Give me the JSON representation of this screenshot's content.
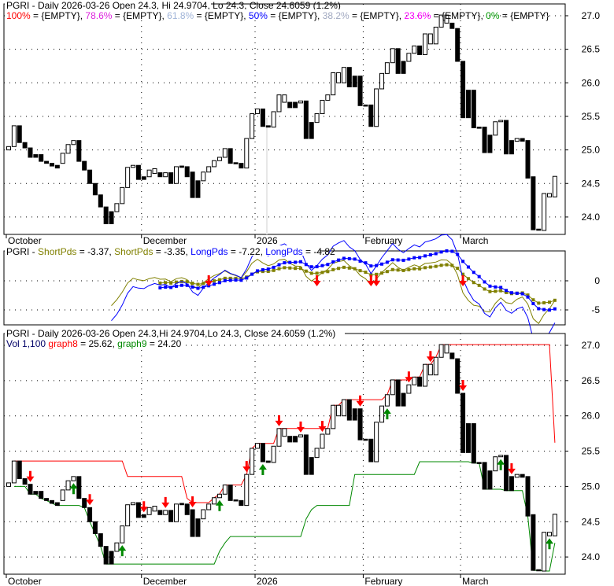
{
  "symbol": "PGRI",
  "top_panel": {
    "title": "PGRI - Daily 2026-03-26 Open 24.3, Hi 24.9704, Lo 24.3, Close 24.6059 (1.2%)",
    "fib_levels": [
      {
        "label": "100%",
        "value": "{EMPTY}",
        "color": "#ff0000"
      },
      {
        "label": "78.6%",
        "value": "{EMPTY}",
        "color": "#dd22dd"
      },
      {
        "label": "61.8%",
        "value": "{EMPTY}",
        "color": "#a0b4d8"
      },
      {
        "label": "50%",
        "value": "{EMPTY}",
        "color": "#0000ff"
      },
      {
        "label": "38.2%",
        "value": "{EMPTY}",
        "color": "#a0a8c0"
      },
      {
        "label": "23.6%",
        "value": "{EMPTY}",
        "color": "#ff00ff"
      },
      {
        "label": "0%",
        "value": "{EMPTY}",
        "color": "#009900"
      }
    ],
    "y_ticks": [
      "27.0",
      "26.5",
      "26.0",
      "25.5",
      "25.0",
      "24.5",
      "24.0"
    ]
  },
  "middle_panel": {
    "prefix": "PGRI - ",
    "series": [
      {
        "name": "ShortPds",
        "value": "-3.37",
        "color": "#808000",
        "style": "thin"
      },
      {
        "name": "ShortPds",
        "value": "-3.35",
        "color": "#808000",
        "style": "marker"
      },
      {
        "name": "LongPds",
        "value": "-7.22",
        "color": "#0000ff",
        "style": "thin"
      },
      {
        "name": "LongPds",
        "value": "-4.82",
        "color": "#0000ff",
        "style": "marker"
      }
    ],
    "y_ticks": [
      "0",
      "-5"
    ],
    "sell_arrows": [
      37,
      57,
      67,
      68,
      84
    ]
  },
  "bottom_panel": {
    "title": "PGRI - Daily 2026-03-26 Open 24.3,Hi 24.9704,Lo 24.3, Close 24.6059 (1.2%)",
    "vol_label": "Vol 1,100",
    "graph8": {
      "name": "graph8",
      "value": "25.62",
      "color": "#ff0000"
    },
    "graph9": {
      "name": "graph9",
      "value": "24.20",
      "color": "#008800"
    },
    "y_ticks": [
      "27.0",
      "26.5",
      "26.0",
      "25.5",
      "25.0",
      "24.5",
      "24.0"
    ],
    "sell_arrows": [
      4,
      15,
      25,
      29,
      34,
      44,
      50,
      54,
      58,
      65,
      74,
      78,
      84,
      93
    ],
    "buy_arrows": [
      12,
      21,
      39,
      47,
      70,
      91,
      100
    ]
  },
  "chart_data": {
    "type": "candlestick",
    "title": "PGRI - Daily",
    "x_labels": [
      {
        "label": "October",
        "index": 0
      },
      {
        "label": "December",
        "index": 25
      },
      {
        "label": "2026",
        "index": 46
      },
      {
        "label": "February",
        "index": 66
      },
      {
        "label": "March",
        "index": 84
      }
    ],
    "ylim": [
      23.8,
      27.1
    ],
    "candles_open_close": [
      [
        25.0,
        25.05
      ],
      [
        25.05,
        25.36
      ],
      [
        25.36,
        25.11
      ],
      [
        25.11,
        25.03
      ],
      [
        25.03,
        24.89
      ],
      [
        24.93,
        24.89
      ],
      [
        24.93,
        24.83
      ],
      [
        24.83,
        24.8
      ],
      [
        24.8,
        24.76
      ],
      [
        24.77,
        24.73
      ],
      [
        24.8,
        24.95
      ],
      [
        24.95,
        25.08
      ],
      [
        25.08,
        25.14
      ],
      [
        25.14,
        24.83
      ],
      [
        24.83,
        24.7
      ],
      [
        24.7,
        24.5
      ],
      [
        24.5,
        24.33
      ],
      [
        24.33,
        24.15
      ],
      [
        24.15,
        23.9
      ],
      [
        24.08,
        23.9
      ],
      [
        24.08,
        24.2
      ],
      [
        24.2,
        24.44
      ],
      [
        24.44,
        24.74
      ],
      [
        24.74,
        24.77
      ],
      [
        24.77,
        24.56
      ],
      [
        24.6,
        24.56
      ],
      [
        24.6,
        24.7
      ],
      [
        24.65,
        24.72
      ],
      [
        24.66,
        24.6
      ],
      [
        24.6,
        24.66
      ],
      [
        24.66,
        24.5
      ],
      [
        24.5,
        24.75
      ],
      [
        24.76,
        24.74
      ],
      [
        24.75,
        24.6
      ],
      [
        24.67,
        24.29
      ],
      [
        24.54,
        24.29
      ],
      [
        24.54,
        24.67
      ],
      [
        24.67,
        24.75
      ],
      [
        24.75,
        24.84
      ],
      [
        24.84,
        24.89
      ],
      [
        24.89,
        25.02
      ],
      [
        25.02,
        24.8
      ],
      [
        24.81,
        24.8
      ],
      [
        24.8,
        24.73
      ],
      [
        24.73,
        25.17
      ],
      [
        25.17,
        25.54
      ],
      [
        25.54,
        25.61
      ],
      [
        25.61,
        25.35
      ],
      [
        25.36,
        25.34
      ],
      [
        25.34,
        25.57
      ],
      [
        25.57,
        25.82
      ],
      [
        25.71,
        25.82
      ],
      [
        25.71,
        25.63
      ],
      [
        25.71,
        25.63
      ],
      [
        25.7,
        25.73
      ],
      [
        25.73,
        25.17
      ],
      [
        25.41,
        25.17
      ],
      [
        25.41,
        25.54
      ],
      [
        25.54,
        25.74
      ],
      [
        25.74,
        25.82
      ],
      [
        25.82,
        26.15
      ],
      [
        26.0,
        26.15
      ],
      [
        26.0,
        26.23
      ],
      [
        26.23,
        25.94
      ],
      [
        26.1,
        25.94
      ],
      [
        26.1,
        25.66
      ],
      [
        25.67,
        25.66
      ],
      [
        25.67,
        25.35
      ],
      [
        25.35,
        25.91
      ],
      [
        25.91,
        26.14
      ],
      [
        26.14,
        26.3
      ],
      [
        26.3,
        26.51
      ],
      [
        26.51,
        26.14
      ],
      [
        26.32,
        26.14
      ],
      [
        26.32,
        26.44
      ],
      [
        26.44,
        26.55
      ],
      [
        26.55,
        26.42
      ],
      [
        26.42,
        26.73
      ],
      [
        26.58,
        26.73
      ],
      [
        26.58,
        26.83
      ],
      [
        26.83,
        27.01
      ],
      [
        26.89,
        27.01
      ],
      [
        26.89,
        26.81
      ],
      [
        26.81,
        26.32
      ],
      [
        26.32,
        25.48
      ],
      [
        25.89,
        25.48
      ],
      [
        25.89,
        25.33
      ],
      [
        25.34,
        25.33
      ],
      [
        25.34,
        24.96
      ],
      [
        25.22,
        24.96
      ],
      [
        25.22,
        25.42
      ],
      [
        25.42,
        25.44
      ],
      [
        25.44,
        24.94
      ],
      [
        25.14,
        24.94
      ],
      [
        25.13,
        25.17
      ],
      [
        25.17,
        25.13
      ],
      [
        25.14,
        24.58
      ],
      [
        24.6,
        23.81
      ],
      [
        23.82,
        23.81
      ],
      [
        23.8,
        24.35
      ],
      [
        24.3,
        24.35
      ],
      [
        24.3,
        24.6059
      ]
    ]
  }
}
